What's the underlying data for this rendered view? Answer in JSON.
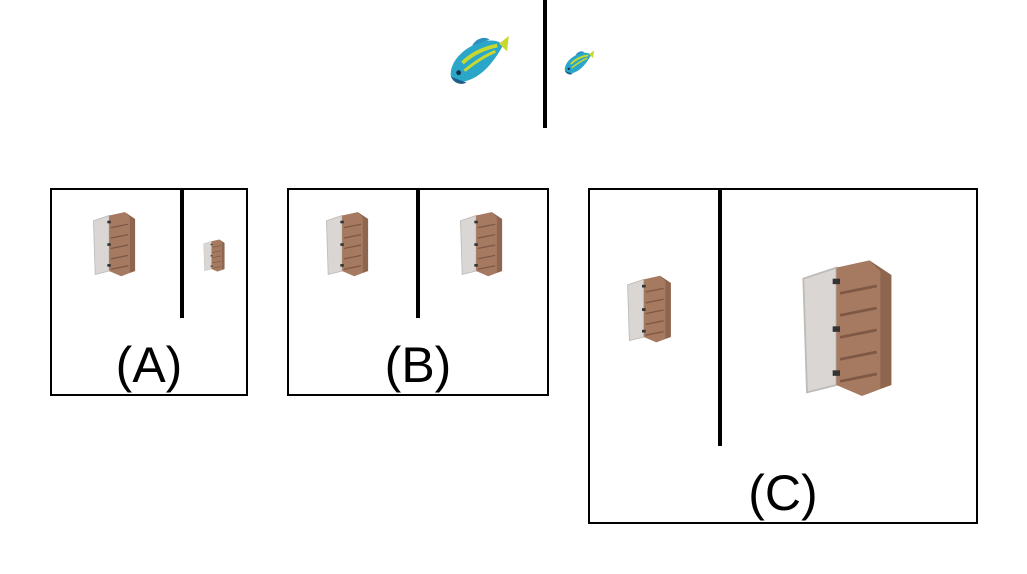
{
  "prompt_pair": {
    "reference_icon": "fish-icon",
    "query_icon": "fish-icon-small"
  },
  "options": [
    {
      "label": "(A)",
      "left_icon": "cabinet-icon",
      "right_icon": "cabinet-icon-small"
    },
    {
      "label": "(B)",
      "left_icon": "cabinet-icon",
      "right_icon": "cabinet-icon"
    },
    {
      "label": "(C)",
      "left_icon": "cabinet-icon",
      "right_icon": "cabinet-icon-large"
    }
  ],
  "colors": {
    "fish_body": "#2aa6c9",
    "fish_stripe": "#c9d82e",
    "fish_dark": "#1d5f8a",
    "cabinet_wood": "#a57a61",
    "cabinet_wood_dark": "#7e5845",
    "cabinet_door": "#d9d6d3",
    "cabinet_door_edge": "#bfbcb8"
  }
}
